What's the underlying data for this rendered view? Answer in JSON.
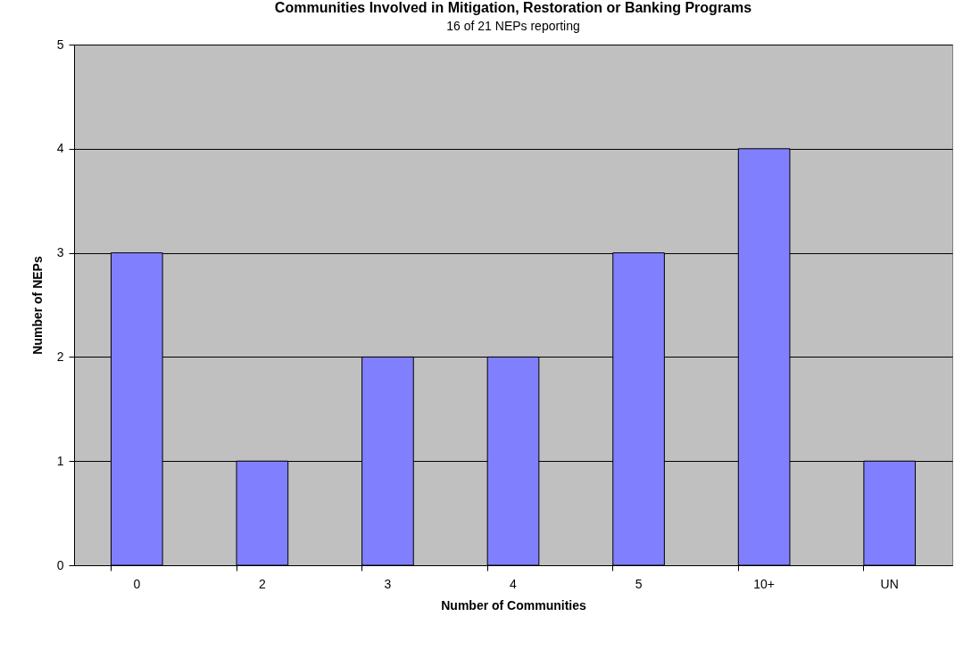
{
  "chart_data": {
    "type": "bar",
    "title": "Communities Involved in Mitigation, Restoration or Banking Programs",
    "subtitle": "16 of 21 NEPs reporting",
    "xlabel": "Number of Communities",
    "ylabel": "Number of NEPs",
    "categories": [
      "0",
      "2",
      "3",
      "4",
      "5",
      "10+",
      "UN"
    ],
    "values": [
      3,
      1,
      2,
      2,
      3,
      4,
      1
    ],
    "color": "#8080ff",
    "ylim": [
      0,
      5
    ],
    "yticks": [
      0,
      1,
      2,
      3,
      4,
      5
    ],
    "grid": "y"
  }
}
